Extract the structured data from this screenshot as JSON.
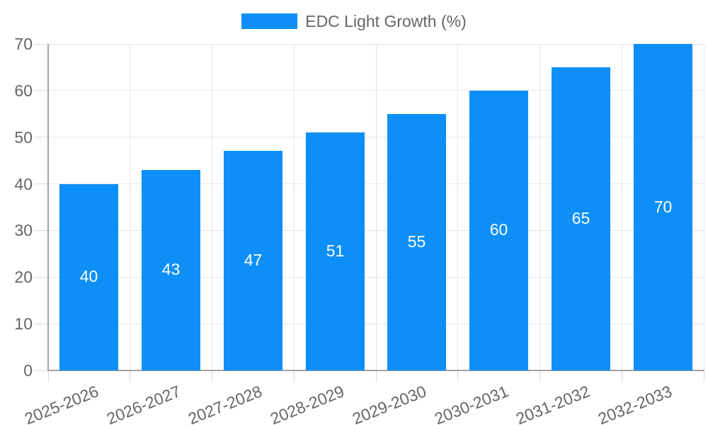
{
  "chart_data": {
    "type": "bar",
    "legend_label": "EDC Light Growth (%)",
    "legend_position": "top",
    "categories": [
      "2025-2026",
      "2026-2027",
      "2027-2028",
      "2028-2029",
      "2029-2030",
      "2030-2031",
      "2031-2032",
      "2032-2033"
    ],
    "values": [
      40,
      43,
      47,
      51,
      55,
      60,
      65,
      70
    ],
    "xlabel": "",
    "ylabel": "",
    "ylim": [
      0,
      70
    ],
    "yticks": [
      0,
      10,
      20,
      30,
      40,
      50,
      60,
      70
    ],
    "grid": true,
    "colors": {
      "bar": "#0d8ff7",
      "grid": "#e6e6e6",
      "tick": "#dadada",
      "axis": "#a3a3a3",
      "text": "#666666",
      "value_label": "#ffffff",
      "background": "#ffffff"
    }
  }
}
